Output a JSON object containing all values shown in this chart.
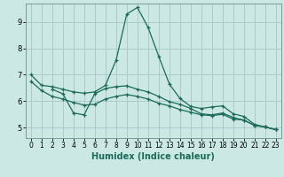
{
  "title": "",
  "xlabel": "Humidex (Indice chaleur)",
  "bg_color": "#cce8e4",
  "grid_color": "#aacccc",
  "line_color": "#1a6b5a",
  "xlim": [
    -0.5,
    23.5
  ],
  "ylim": [
    4.6,
    9.7
  ],
  "yticks": [
    5,
    6,
    7,
    8,
    9
  ],
  "xticks": [
    0,
    1,
    2,
    3,
    4,
    5,
    6,
    7,
    8,
    9,
    10,
    11,
    12,
    13,
    14,
    15,
    16,
    17,
    18,
    19,
    20,
    21,
    22,
    23
  ],
  "series1_x": [
    0,
    1,
    2,
    3,
    4,
    5,
    6,
    7,
    8,
    9,
    10,
    11,
    12,
    13,
    14,
    15,
    16,
    17,
    18,
    19,
    20,
    21,
    22,
    23
  ],
  "series1_y": [
    7.0,
    6.6,
    6.55,
    6.45,
    6.35,
    6.3,
    6.35,
    6.6,
    7.55,
    9.3,
    9.55,
    8.8,
    7.7,
    6.65,
    6.1,
    5.8,
    5.72,
    5.78,
    5.82,
    5.52,
    5.42,
    5.12,
    5.02,
    4.92
  ],
  "series2_x": [
    2,
    3,
    4,
    5,
    6,
    7,
    8,
    9,
    10,
    11,
    12,
    13,
    14,
    15,
    16,
    17,
    18,
    19,
    20,
    21,
    22,
    23
  ],
  "series2_y": [
    6.45,
    6.28,
    5.55,
    5.48,
    6.28,
    6.48,
    6.55,
    6.58,
    6.45,
    6.35,
    6.18,
    5.98,
    5.88,
    5.72,
    5.52,
    5.48,
    5.55,
    5.38,
    5.28,
    5.08,
    5.02,
    4.92
  ],
  "series3_x": [
    0,
    1,
    2,
    3,
    4,
    5,
    6,
    7,
    8,
    9,
    10,
    11,
    12,
    13,
    14,
    15,
    16,
    17,
    18,
    19,
    20,
    21,
    22,
    23
  ],
  "series3_y": [
    6.75,
    6.4,
    6.18,
    6.08,
    5.95,
    5.85,
    5.88,
    6.08,
    6.18,
    6.25,
    6.18,
    6.08,
    5.92,
    5.82,
    5.68,
    5.58,
    5.48,
    5.45,
    5.5,
    5.32,
    5.28,
    5.08,
    5.02,
    4.92
  ]
}
